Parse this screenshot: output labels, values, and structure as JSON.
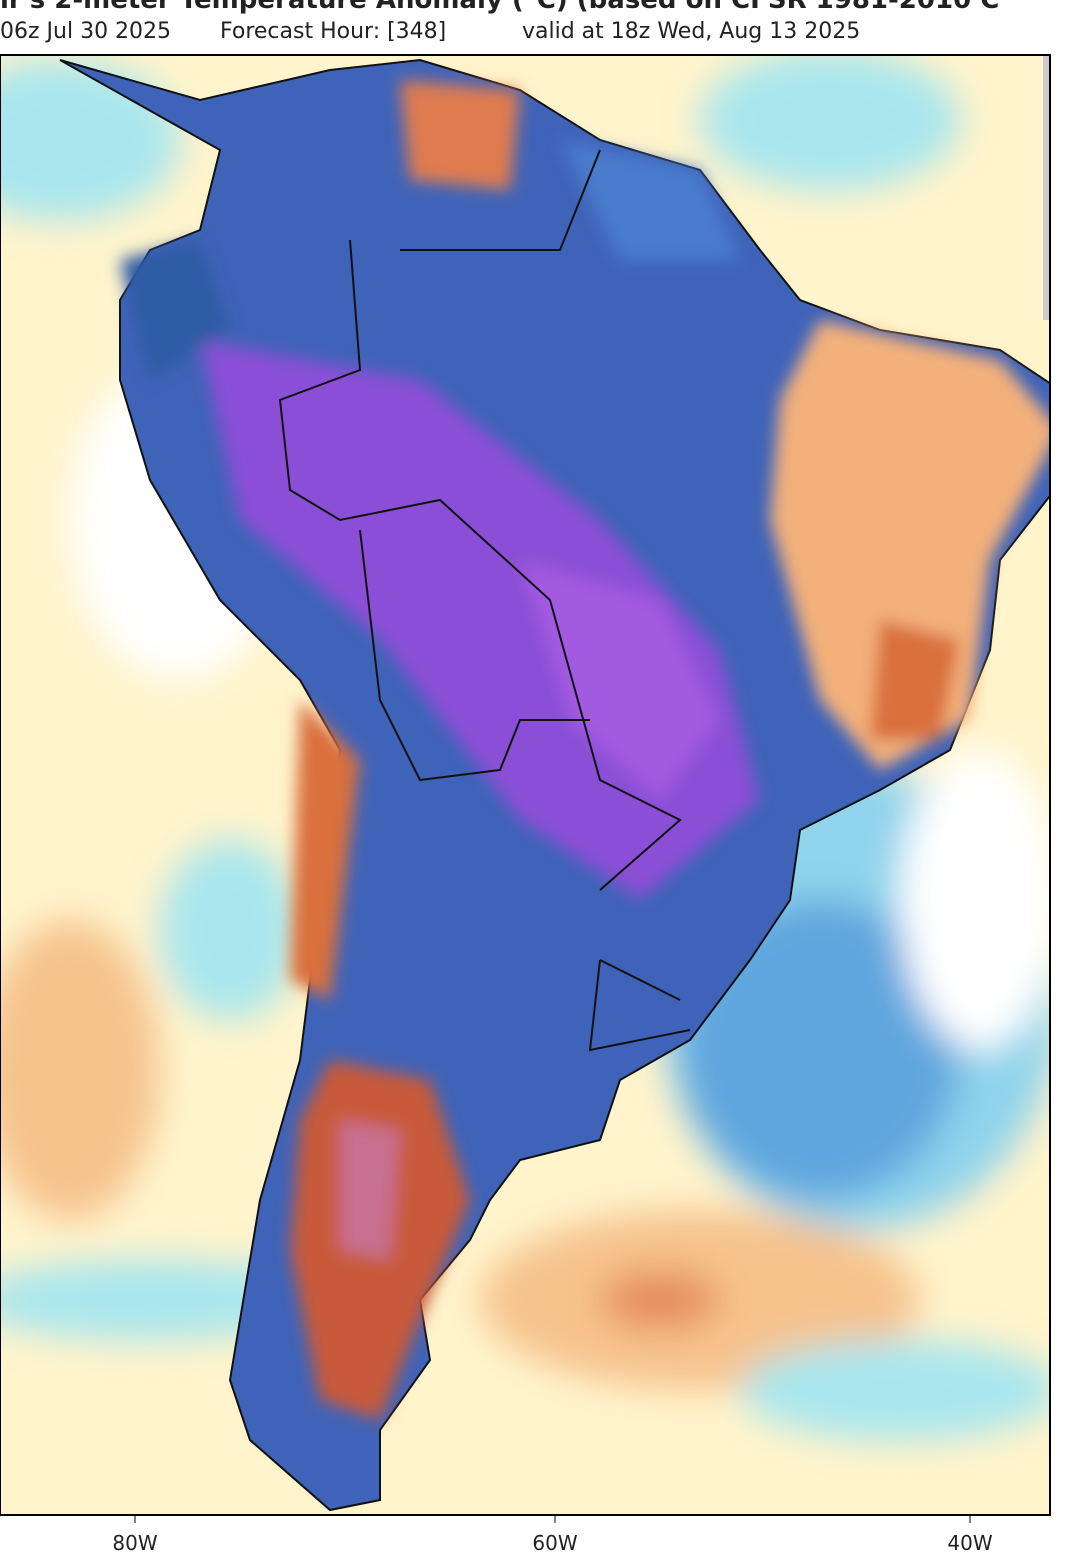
{
  "header": {
    "title": "ir's 2-meter Temperature Anomaly (°C) (based on CFSR 1981-2010 C",
    "init_time": "06z Jul 30 2025",
    "forecast_hour": "Forecast Hour: [348]",
    "valid_time": "valid at 18z Wed, Aug 13 2025"
  },
  "axis": {
    "xticks": [
      "80W",
      "60W",
      "40W"
    ]
  }
}
